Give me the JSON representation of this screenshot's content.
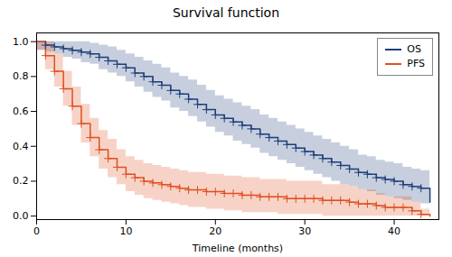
{
  "chart_data": {
    "type": "line",
    "title": "Survival function",
    "xlabel": "Timeline (months)",
    "xlim": [
      0,
      45
    ],
    "ylim": [
      -0.02,
      1.05
    ],
    "xticks": [
      0,
      10,
      20,
      30,
      40
    ],
    "yticks": [
      {
        "value": 0.0,
        "label": "0.0"
      },
      0.2,
      0.4,
      0.6,
      0.8,
      {
        "value": 1.0,
        "label": "1.0"
      }
    ],
    "grid": false,
    "legend": "upper right",
    "x": [
      0,
      1,
      2,
      3,
      4,
      5,
      6,
      7,
      8,
      9,
      10,
      11,
      12,
      13,
      14,
      15,
      16,
      17,
      18,
      19,
      20,
      21,
      22,
      23,
      24,
      25,
      26,
      27,
      28,
      29,
      30,
      31,
      32,
      33,
      34,
      35,
      36,
      37,
      38,
      39,
      40,
      41,
      42,
      43,
      44
    ],
    "series": [
      {
        "name": "OS",
        "color": "#1f3f7a",
        "marker": "+",
        "values": [
          1.0,
          0.98,
          0.97,
          0.96,
          0.95,
          0.94,
          0.93,
          0.91,
          0.89,
          0.87,
          0.85,
          0.82,
          0.8,
          0.77,
          0.75,
          0.72,
          0.7,
          0.67,
          0.64,
          0.61,
          0.58,
          0.56,
          0.54,
          0.52,
          0.5,
          0.47,
          0.45,
          0.43,
          0.41,
          0.39,
          0.37,
          0.35,
          0.33,
          0.31,
          0.29,
          0.27,
          0.25,
          0.24,
          0.22,
          0.21,
          0.2,
          0.18,
          0.17,
          0.16,
          0.08
        ],
        "lower": [
          0.95,
          0.94,
          0.93,
          0.91,
          0.9,
          0.88,
          0.87,
          0.84,
          0.82,
          0.8,
          0.77,
          0.74,
          0.71,
          0.68,
          0.66,
          0.62,
          0.6,
          0.57,
          0.54,
          0.51,
          0.48,
          0.46,
          0.43,
          0.41,
          0.39,
          0.36,
          0.34,
          0.32,
          0.3,
          0.28,
          0.26,
          0.24,
          0.22,
          0.2,
          0.18,
          0.17,
          0.15,
          0.14,
          0.12,
          0.11,
          0.1,
          0.09,
          0.08,
          0.07,
          0.0
        ],
        "upper": [
          1.0,
          1.0,
          1.0,
          1.0,
          1.0,
          1.0,
          0.99,
          0.98,
          0.97,
          0.95,
          0.93,
          0.91,
          0.89,
          0.87,
          0.85,
          0.82,
          0.8,
          0.78,
          0.75,
          0.72,
          0.69,
          0.67,
          0.65,
          0.63,
          0.61,
          0.58,
          0.56,
          0.54,
          0.52,
          0.5,
          0.48,
          0.46,
          0.44,
          0.42,
          0.4,
          0.38,
          0.35,
          0.34,
          0.32,
          0.31,
          0.3,
          0.28,
          0.27,
          0.26,
          0.17
        ],
        "censor_x": [
          1,
          2,
          3,
          4,
          5,
          6,
          7,
          8,
          9,
          10,
          11,
          12,
          13,
          14,
          15,
          16,
          17,
          18,
          19,
          20,
          21,
          22,
          23,
          24,
          25,
          26,
          27,
          28,
          29,
          30,
          31,
          32,
          33,
          34,
          35,
          36,
          37,
          38,
          39,
          40,
          41,
          42,
          43
        ],
        "censor_y": [
          0.98,
          0.97,
          0.96,
          0.95,
          0.94,
          0.93,
          0.91,
          0.89,
          0.87,
          0.85,
          0.82,
          0.8,
          0.77,
          0.75,
          0.72,
          0.7,
          0.67,
          0.64,
          0.61,
          0.58,
          0.56,
          0.54,
          0.52,
          0.5,
          0.47,
          0.45,
          0.43,
          0.41,
          0.39,
          0.37,
          0.35,
          0.33,
          0.31,
          0.29,
          0.27,
          0.25,
          0.24,
          0.22,
          0.21,
          0.2,
          0.18,
          0.17,
          0.16
        ]
      },
      {
        "name": "PFS",
        "color": "#e05020",
        "marker": "+",
        "values": [
          1.0,
          0.92,
          0.83,
          0.73,
          0.63,
          0.53,
          0.45,
          0.38,
          0.33,
          0.28,
          0.24,
          0.22,
          0.2,
          0.19,
          0.18,
          0.17,
          0.16,
          0.15,
          0.15,
          0.14,
          0.14,
          0.13,
          0.13,
          0.12,
          0.12,
          0.11,
          0.11,
          0.11,
          0.1,
          0.1,
          0.1,
          0.1,
          0.09,
          0.09,
          0.09,
          0.08,
          0.07,
          0.07,
          0.06,
          0.05,
          0.05,
          0.05,
          0.03,
          0.01,
          0.0
        ],
        "lower": [
          0.95,
          0.84,
          0.74,
          0.63,
          0.52,
          0.42,
          0.34,
          0.27,
          0.22,
          0.18,
          0.14,
          0.12,
          0.1,
          0.09,
          0.08,
          0.07,
          0.06,
          0.05,
          0.05,
          0.04,
          0.04,
          0.03,
          0.03,
          0.02,
          0.02,
          0.02,
          0.02,
          0.01,
          0.01,
          0.01,
          0.01,
          0.01,
          0.0,
          0.0,
          0.0,
          0.0,
          0.0,
          0.0,
          0.0,
          0.0,
          0.0,
          0.0,
          0.0,
          0.0,
          0.0
        ],
        "upper": [
          1.0,
          1.0,
          0.93,
          0.83,
          0.74,
          0.64,
          0.56,
          0.49,
          0.44,
          0.38,
          0.34,
          0.32,
          0.3,
          0.29,
          0.28,
          0.27,
          0.26,
          0.25,
          0.25,
          0.24,
          0.24,
          0.23,
          0.23,
          0.22,
          0.22,
          0.21,
          0.21,
          0.21,
          0.2,
          0.2,
          0.2,
          0.2,
          0.18,
          0.18,
          0.18,
          0.17,
          0.15,
          0.15,
          0.13,
          0.11,
          0.11,
          0.11,
          0.08,
          0.04,
          0.0
        ],
        "censor_x": [
          1,
          2,
          3,
          4,
          5,
          6,
          7,
          8,
          9,
          10,
          11,
          12,
          13,
          14,
          15,
          16,
          17,
          18,
          19,
          20,
          21,
          22,
          23,
          24,
          25,
          26,
          27,
          28,
          29,
          30,
          31,
          32,
          33,
          34,
          35,
          36,
          37,
          38,
          39,
          40,
          41,
          42,
          43
        ],
        "censor_y": [
          0.92,
          0.83,
          0.73,
          0.63,
          0.53,
          0.45,
          0.38,
          0.33,
          0.28,
          0.24,
          0.22,
          0.2,
          0.19,
          0.18,
          0.17,
          0.16,
          0.15,
          0.15,
          0.14,
          0.14,
          0.13,
          0.13,
          0.12,
          0.12,
          0.11,
          0.11,
          0.11,
          0.1,
          0.1,
          0.1,
          0.1,
          0.09,
          0.09,
          0.09,
          0.08,
          0.07,
          0.07,
          0.06,
          0.05,
          0.05,
          0.05,
          0.03,
          0.01
        ]
      }
    ]
  }
}
